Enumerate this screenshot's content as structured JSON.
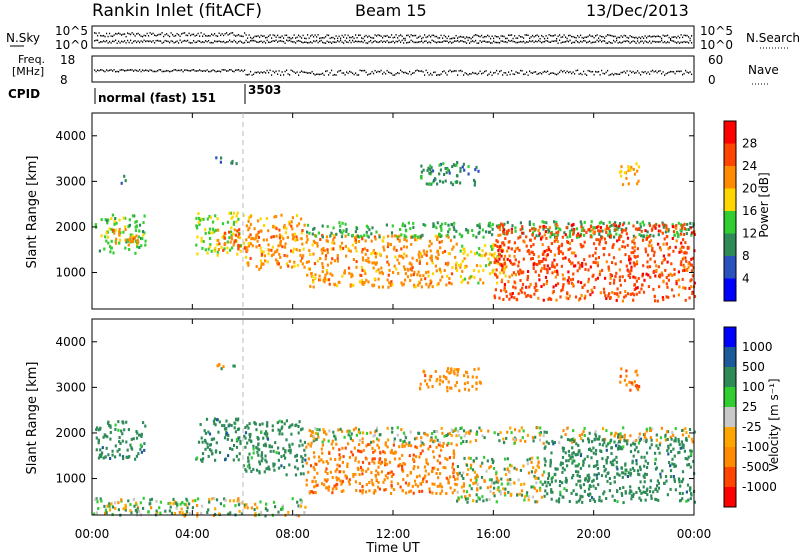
{
  "header": {
    "station": "Rankin Inlet (fitACF)",
    "beam": "Beam 15",
    "date": "13/Dec/2013"
  },
  "noise_panel": {
    "left_label": "N.Sky",
    "right_label": "N.Search",
    "tick_top": "10^5",
    "tick_bottom": "10^0"
  },
  "freq_panel": {
    "left_label_line1": "Freq.",
    "left_label_line2": "[MHz]",
    "left_tick_top": "18",
    "left_tick_bottom": "8",
    "right_label": "Nave",
    "right_tick_top": "60",
    "right_tick_bottom": "0"
  },
  "cpid": {
    "label": "CPID",
    "segments": [
      {
        "name": "normal (fast) 151",
        "start_hour": 0
      },
      {
        "name": "3503",
        "start_hour": 6
      }
    ]
  },
  "x_axis": {
    "label": "Time UT",
    "ticks": [
      "00:00",
      "04:00",
      "08:00",
      "12:00",
      "16:00",
      "20:00",
      "00:00"
    ]
  },
  "colors": {
    "power": [
      "#0000ff",
      "#2a52be",
      "#2e8b57",
      "#32cd32",
      "#ffd700",
      "#ff8c00",
      "#ff4500",
      "#ff0000"
    ],
    "velocity": [
      "#ff0000",
      "#ff4500",
      "#ff8c00",
      "#ffa500",
      "#c8c8c8",
      "#32cd32",
      "#2e8b57",
      "#1c5a9a",
      "#0000ff"
    ]
  },
  "chart_data": [
    {
      "type": "heatmap",
      "name": "power",
      "ylabel": "Slant Range [km]",
      "xlabel": "",
      "xlim": [
        0,
        24
      ],
      "ylim": [
        200,
        4500
      ],
      "yticks": [
        "1000",
        "2000",
        "3000",
        "4000"
      ],
      "colorbar": {
        "label": "Power [dB]",
        "ticks": [
          "4",
          "8",
          "12",
          "16",
          "20",
          "24",
          "28"
        ],
        "range": [
          0,
          32
        ]
      },
      "regions": [
        {
          "t0": 0.1,
          "t1": 2.1,
          "r0": 1450,
          "r1": 2300,
          "value": 14
        },
        {
          "t0": 0.8,
          "t1": 1.8,
          "r0": 1600,
          "r1": 2000,
          "value": 22
        },
        {
          "t0": 1.1,
          "t1": 1.4,
          "r0": 2950,
          "r1": 3150,
          "value": 8
        },
        {
          "t0": 4.1,
          "t1": 5.9,
          "r0": 1400,
          "r1": 2350,
          "value": 16
        },
        {
          "t0": 4.9,
          "t1": 5.9,
          "r0": 1500,
          "r1": 2000,
          "value": 24
        },
        {
          "t0": 4.9,
          "t1": 5.8,
          "r0": 3400,
          "r1": 3550,
          "value": 6
        },
        {
          "t0": 6.0,
          "t1": 8.5,
          "r0": 1100,
          "r1": 2300,
          "value": 22
        },
        {
          "t0": 8.5,
          "t1": 14.5,
          "r0": 700,
          "r1": 1850,
          "value": 22
        },
        {
          "t0": 8.5,
          "t1": 24,
          "r0": 1800,
          "r1": 2150,
          "value": 12
        },
        {
          "t0": 13.0,
          "t1": 15.5,
          "r0": 2950,
          "r1": 3450,
          "value": 10
        },
        {
          "t0": 14.5,
          "t1": 16.5,
          "r0": 800,
          "r1": 1650,
          "value": 18
        },
        {
          "t0": 16.0,
          "t1": 24,
          "r0": 400,
          "r1": 2100,
          "value": 26
        },
        {
          "t0": 21.0,
          "t1": 21.8,
          "r0": 2950,
          "r1": 3450,
          "value": 20
        }
      ]
    },
    {
      "type": "heatmap",
      "name": "velocity",
      "ylabel": "Slant Range [km]",
      "xlabel": "Time UT",
      "xlim": [
        0,
        24
      ],
      "ylim": [
        200,
        4500
      ],
      "yticks": [
        "1000",
        "2000",
        "3000",
        "4000"
      ],
      "colorbar": {
        "label": "Velocity [m s⁻¹]",
        "ticks": [
          "1000",
          "500",
          "100",
          "25",
          "-25",
          "-100",
          "-500",
          "-1000"
        ],
        "range": [
          -1200,
          1200
        ]
      },
      "regions": [
        {
          "t0": 0.1,
          "t1": 2.1,
          "r0": 1450,
          "r1": 2300,
          "value": 300
        },
        {
          "t0": 4.1,
          "t1": 5.9,
          "r0": 1400,
          "r1": 2350,
          "value": 300
        },
        {
          "t0": 4.9,
          "t1": 5.8,
          "r0": 3400,
          "r1": 3550,
          "value": 0
        },
        {
          "t0": 6.0,
          "t1": 8.5,
          "r0": 1100,
          "r1": 2300,
          "value": 300
        },
        {
          "t0": 0.0,
          "t1": 8.5,
          "r0": 200,
          "r1": 600,
          "value": 60
        },
        {
          "t0": 8.5,
          "t1": 14.5,
          "r0": 700,
          "r1": 1800,
          "value": -400
        },
        {
          "t0": 8.5,
          "t1": 24,
          "r0": 1800,
          "r1": 2150,
          "value": 0
        },
        {
          "t0": 13.0,
          "t1": 15.5,
          "r0": 2950,
          "r1": 3450,
          "value": -300
        },
        {
          "t0": 14.5,
          "t1": 18.0,
          "r0": 500,
          "r1": 1500,
          "value": 0
        },
        {
          "t0": 18.0,
          "t1": 24,
          "r0": 500,
          "r1": 1900,
          "value": 300
        },
        {
          "t0": 21.0,
          "t1": 21.8,
          "r0": 2950,
          "r1": 3450,
          "value": -400
        }
      ]
    }
  ]
}
